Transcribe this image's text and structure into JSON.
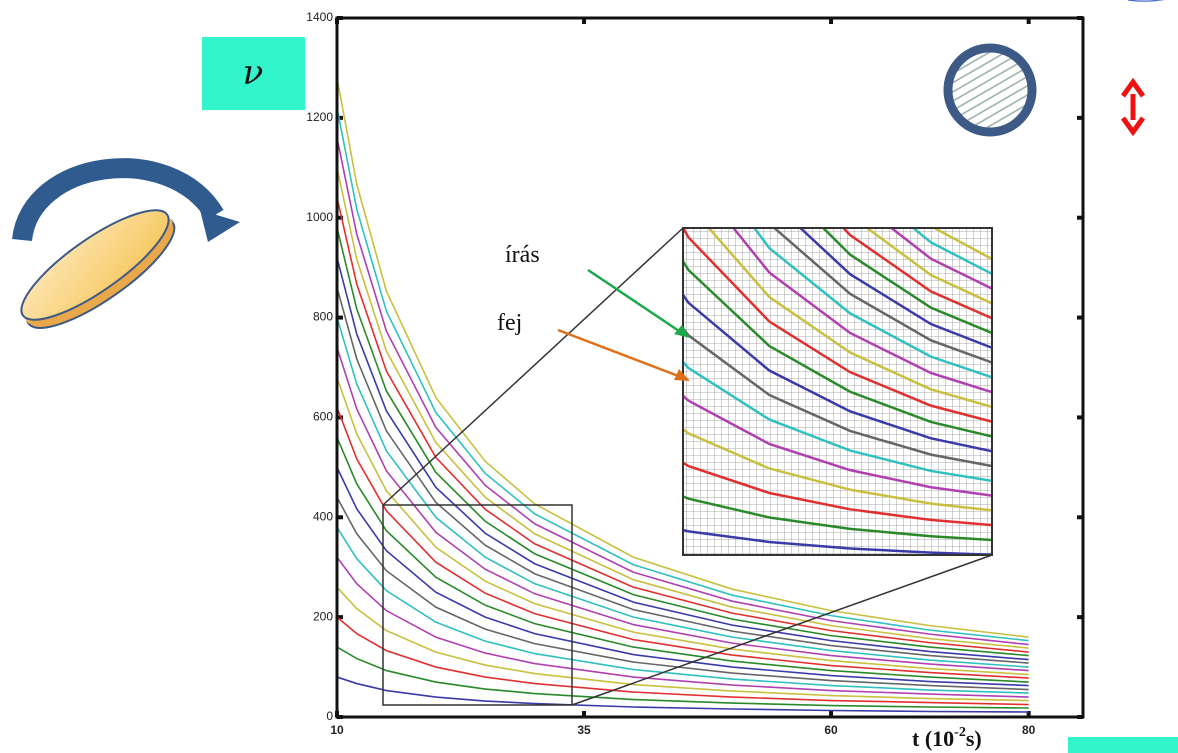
{
  "chart_data": {
    "type": "line",
    "symbol": "ν",
    "x_label": [
      "t (10",
      "-2",
      "s)"
    ],
    "annotations": [
      "írás",
      "fej"
    ],
    "x": [
      10,
      12,
      15,
      20,
      25,
      30,
      40,
      50,
      60,
      70,
      80
    ],
    "xlim": [
      10,
      85.5
    ],
    "xticks": [
      10,
      35,
      60,
      80
    ],
    "ylim": [
      0,
      1400
    ],
    "yticks": [
      0,
      200,
      400,
      600,
      800,
      1000,
      1200,
      1400
    ],
    "series": [
      {
        "color": "#3a3aa8",
        "values": [
          80,
          67,
          53,
          40,
          32,
          27,
          20,
          16,
          13,
          11,
          10
        ]
      },
      {
        "color": "#2a8a2a",
        "values": [
          140,
          117,
          93,
          70,
          56,
          47,
          35,
          28,
          23,
          20,
          18
        ]
      },
      {
        "color": "#e03030",
        "values": [
          200,
          167,
          133,
          100,
          80,
          67,
          50,
          40,
          33,
          29,
          25
        ]
      },
      {
        "color": "#c8c040",
        "values": [
          260,
          217,
          173,
          130,
          104,
          87,
          65,
          52,
          43,
          37,
          33
        ]
      },
      {
        "color": "#b040b0",
        "values": [
          320,
          267,
          213,
          160,
          128,
          107,
          80,
          64,
          53,
          46,
          40
        ]
      },
      {
        "color": "#30c0c0",
        "values": [
          380,
          317,
          253,
          190,
          152,
          127,
          95,
          76,
          63,
          54,
          48
        ]
      },
      {
        "color": "#666666",
        "values": [
          440,
          367,
          293,
          220,
          176,
          147,
          110,
          88,
          73,
          63,
          55
        ]
      },
      {
        "color": "#3a3aa8",
        "values": [
          500,
          417,
          333,
          250,
          200,
          167,
          125,
          100,
          83,
          71,
          63
        ]
      },
      {
        "color": "#2a8a2a",
        "values": [
          560,
          467,
          373,
          280,
          224,
          187,
          140,
          112,
          93,
          80,
          70
        ]
      },
      {
        "color": "#e03030",
        "values": [
          620,
          517,
          413,
          310,
          248,
          207,
          155,
          124,
          103,
          89,
          78
        ]
      },
      {
        "color": "#c8c040",
        "values": [
          680,
          567,
          453,
          340,
          272,
          227,
          170,
          136,
          113,
          97,
          85
        ]
      },
      {
        "color": "#b040b0",
        "values": [
          740,
          617,
          493,
          370,
          296,
          247,
          185,
          148,
          123,
          106,
          93
        ]
      },
      {
        "color": "#30c0c0",
        "values": [
          800,
          667,
          533,
          400,
          320,
          267,
          200,
          160,
          133,
          114,
          100
        ]
      },
      {
        "color": "#666666",
        "values": [
          860,
          717,
          573,
          430,
          344,
          287,
          215,
          172,
          143,
          123,
          108
        ]
      },
      {
        "color": "#3a3aa8",
        "values": [
          920,
          767,
          613,
          460,
          368,
          307,
          230,
          184,
          153,
          131,
          115
        ]
      },
      {
        "color": "#2a8a2a",
        "values": [
          980,
          817,
          653,
          490,
          392,
          327,
          245,
          196,
          163,
          140,
          123
        ]
      },
      {
        "color": "#e03030",
        "values": [
          1040,
          867,
          693,
          520,
          416,
          347,
          260,
          208,
          173,
          149,
          130
        ]
      },
      {
        "color": "#c8c040",
        "values": [
          1100,
          917,
          733,
          550,
          440,
          367,
          275,
          220,
          183,
          157,
          138
        ]
      },
      {
        "color": "#b040b0",
        "values": [
          1160,
          967,
          773,
          580,
          464,
          387,
          290,
          232,
          193,
          166,
          145
        ]
      },
      {
        "color": "#30c0c0",
        "values": [
          1220,
          1017,
          813,
          610,
          488,
          407,
          305,
          244,
          203,
          174,
          153
        ]
      },
      {
        "color": "#c8c040",
        "values": [
          1280,
          1067,
          853,
          640,
          512,
          427,
          320,
          256,
          213,
          183,
          160
        ]
      }
    ]
  }
}
